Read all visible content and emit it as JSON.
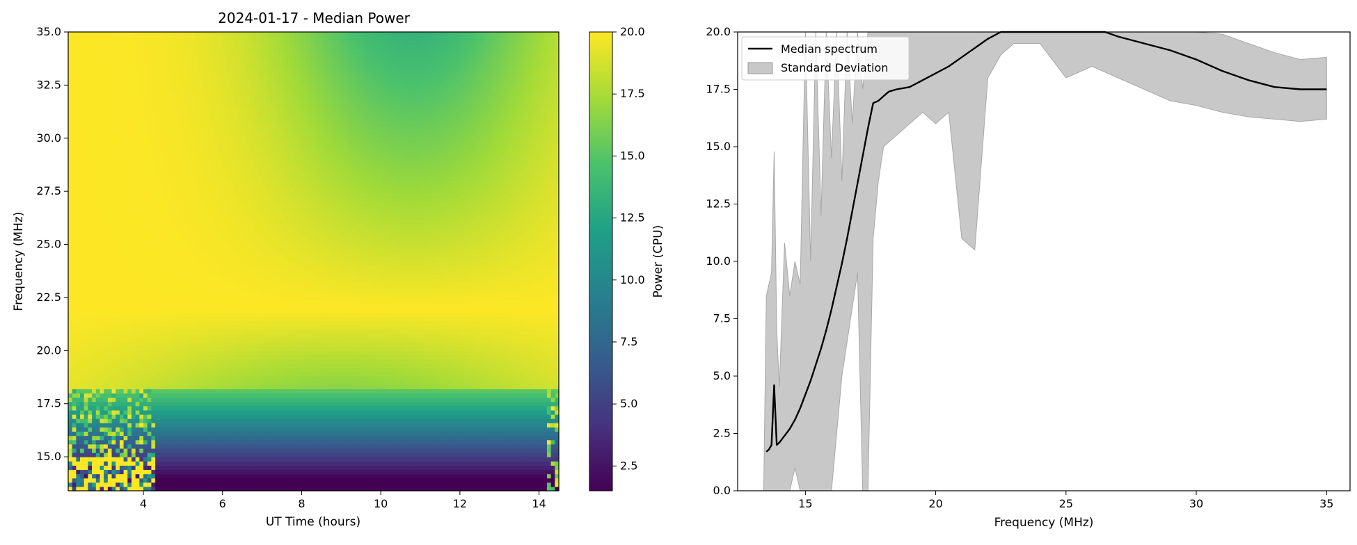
{
  "chart_data": [
    {
      "type": "heatmap",
      "title": "2024-01-17 - Median Power",
      "xlabel": "UT Time (hours)",
      "ylabel": "Frequency (MHz)",
      "xlim": [
        2.1,
        14.5
      ],
      "ylim": [
        13.4,
        35.0
      ],
      "xticks": [
        "4",
        "6",
        "8",
        "10",
        "12",
        "14"
      ],
      "yticks": [
        "15.0",
        "17.5",
        "20.0",
        "22.5",
        "25.0",
        "27.5",
        "30.0",
        "32.5",
        "35.0"
      ],
      "colorbar": {
        "label": "Power (CPU)",
        "range": [
          1.5,
          20.0
        ],
        "ticks": [
          "2.5",
          "5.0",
          "7.5",
          "10.0",
          "12.5",
          "15.0",
          "17.5",
          "20.0"
        ],
        "colormap": "viridis"
      },
      "grid": false
    },
    {
      "type": "line",
      "title": "",
      "xlabel": "Frequency (MHz)",
      "ylabel": "",
      "xlim": [
        12.4,
        35.9
      ],
      "ylim": [
        0.0,
        20.0
      ],
      "xticks": [
        "15",
        "20",
        "25",
        "30",
        "35"
      ],
      "yticks": [
        "0.0",
        "2.5",
        "5.0",
        "7.5",
        "10.0",
        "12.5",
        "15.0",
        "17.5",
        "20.0"
      ],
      "legend_placement": "upper-left",
      "grid": false,
      "series": [
        {
          "name": "Median spectrum",
          "color": "#000000",
          "x": [
            13.5,
            13.6,
            13.7,
            13.8,
            13.9,
            14.0,
            14.2,
            14.4,
            14.6,
            14.8,
            15.0,
            15.2,
            15.4,
            15.6,
            15.8,
            16.0,
            16.2,
            16.4,
            16.6,
            16.8,
            17.0,
            17.2,
            17.4,
            17.6,
            17.8,
            18.0,
            18.2,
            18.5,
            19.0,
            19.5,
            20.0,
            20.5,
            21.0,
            21.5,
            22.0,
            22.5,
            23.0,
            24.0,
            25.0,
            26.0,
            26.5,
            27.0,
            28.0,
            29.0,
            30.0,
            31.0,
            32.0,
            33.0,
            34.0,
            35.0
          ],
          "values": [
            1.7,
            1.8,
            2.0,
            4.6,
            2.0,
            2.1,
            2.4,
            2.7,
            3.1,
            3.6,
            4.2,
            4.8,
            5.5,
            6.2,
            7.0,
            7.9,
            8.9,
            9.9,
            11.0,
            12.2,
            13.4,
            14.6,
            15.8,
            16.9,
            17.0,
            17.2,
            17.4,
            17.5,
            17.6,
            17.9,
            18.2,
            18.5,
            18.9,
            19.3,
            19.7,
            20.0,
            20.0,
            20.0,
            20.0,
            20.0,
            20.0,
            19.8,
            19.5,
            19.2,
            18.8,
            18.3,
            17.9,
            17.6,
            17.5,
            17.5
          ]
        },
        {
          "name": "Standard Deviation",
          "color": "#c8c8c8",
          "x": [
            13.4,
            13.5,
            13.7,
            13.8,
            13.9,
            14.0,
            14.2,
            14.4,
            14.6,
            14.8,
            15.0,
            15.2,
            15.4,
            15.6,
            15.8,
            16.0,
            16.2,
            16.4,
            16.6,
            16.8,
            17.0,
            17.2,
            17.4,
            17.6,
            17.8,
            18.0,
            18.5,
            19.0,
            19.5,
            20.0,
            20.5,
            21.0,
            21.5,
            22.0,
            22.5,
            23.0,
            24.0,
            25.0,
            26.0,
            27.0,
            28.0,
            29.0,
            30.0,
            31.0,
            32.0,
            33.0,
            34.0,
            35.0
          ],
          "upper": [
            0.0,
            8.5,
            9.5,
            14.8,
            7.0,
            4.5,
            10.8,
            8.5,
            10.0,
            9.0,
            20.0,
            10.0,
            20.0,
            12.0,
            20.0,
            14.5,
            20.0,
            13.5,
            20.0,
            16.0,
            20.0,
            17.5,
            20.0,
            20.0,
            20.0,
            20.0,
            20.0,
            20.0,
            20.0,
            20.0,
            20.0,
            20.0,
            20.0,
            20.0,
            20.0,
            20.0,
            20.0,
            20.0,
            20.0,
            20.0,
            20.0,
            20.0,
            20.0,
            19.9,
            19.5,
            19.1,
            18.8,
            18.9
          ],
          "lower": [
            0.0,
            0.0,
            0.0,
            0.0,
            0.0,
            0.0,
            0.0,
            0.0,
            1.0,
            0.0,
            0.0,
            0.0,
            0.0,
            0.0,
            0.0,
            0.0,
            2.5,
            5.0,
            6.5,
            8.0,
            9.5,
            0.0,
            0.0,
            11.0,
            13.5,
            15.0,
            15.5,
            16.0,
            16.5,
            16.0,
            16.5,
            11.0,
            10.5,
            18.0,
            19.0,
            19.5,
            19.5,
            18.0,
            18.5,
            18.0,
            17.5,
            17.0,
            16.8,
            16.5,
            16.3,
            16.2,
            16.1,
            16.2
          ]
        }
      ]
    }
  ]
}
